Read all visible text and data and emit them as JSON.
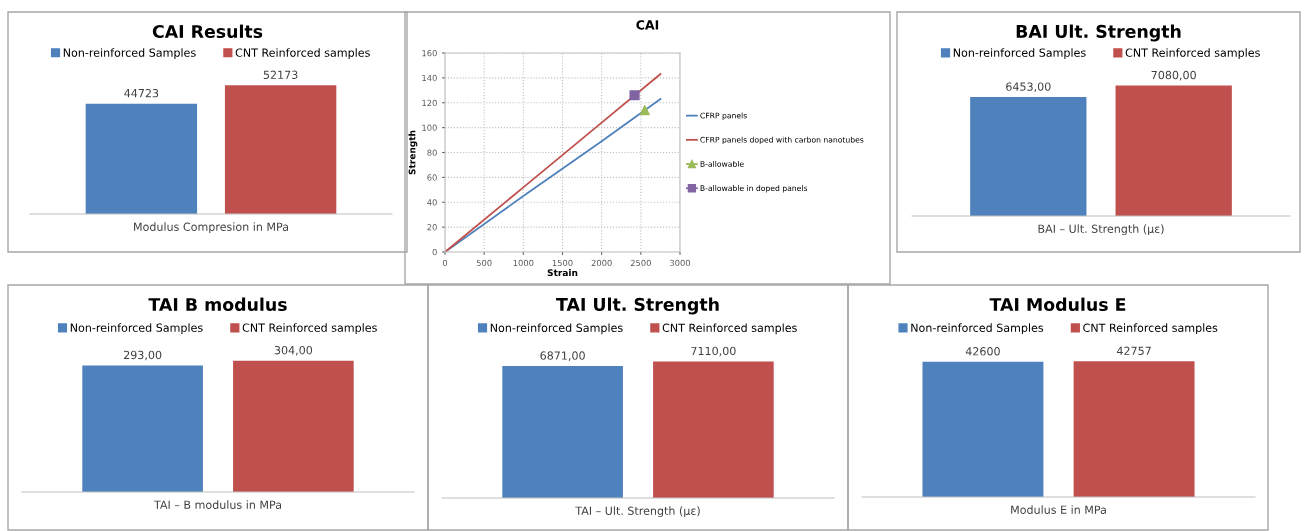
{
  "chart_data": [
    {
      "type": "bar",
      "title": "CAI Results",
      "xlabel": "Modulus Compresion in MPa",
      "categories": [
        null
      ],
      "legend": "top",
      "tick_labels": false,
      "series": [
        {
          "name": "Non-reinforced Samples",
          "color": "#4f81bd",
          "values": [
            44723
          ],
          "value_labels": [
            "44723"
          ]
        },
        {
          "name": "CNT Reinforced samples",
          "color": "#c0504d",
          "values": [
            52173
          ],
          "value_labels": [
            "52173"
          ]
        }
      ]
    },
    {
      "type": "line",
      "title": "CAI",
      "xlabel": "Strain",
      "ylabel": "Strength",
      "xlim": [
        0,
        3000
      ],
      "xticks": [
        0,
        500,
        1000,
        1500,
        2000,
        2500,
        3000
      ],
      "ylim": [
        0,
        160
      ],
      "yticks": [
        0,
        20,
        40,
        60,
        80,
        100,
        120,
        140,
        160
      ],
      "grid": true,
      "legend": "right",
      "series": [
        {
          "name": "CFRP panels",
          "color": "#4f81bd",
          "x": [
            0,
            1000,
            2000,
            2750
          ],
          "values": [
            0,
            45,
            89,
            123
          ],
          "marker": "none"
        },
        {
          "name": "CFRP panels doped with carbon nanotubes",
          "color": "#c0504d",
          "x": [
            0,
            1000,
            2000,
            2750
          ],
          "values": [
            0,
            52,
            104,
            143
          ],
          "marker": "none"
        },
        {
          "name": "B-allowable",
          "type": "scatter",
          "color": "#9bbb59",
          "x": [
            2550
          ],
          "values": [
            114
          ],
          "marker": "triangle"
        },
        {
          "name": "B-allowable in doped panels",
          "type": "scatter",
          "color": "#8064a2",
          "x": [
            2420
          ],
          "values": [
            126
          ],
          "marker": "square"
        }
      ]
    },
    {
      "type": "bar",
      "title": "BAI Ult. Strength",
      "xlabel": "BAI – Ult. Strength (με)",
      "categories": [
        null
      ],
      "legend": "top",
      "tick_labels": false,
      "series": [
        {
          "name": "Non-reinforced Samples",
          "color": "#4f81bd",
          "values": [
            6453
          ],
          "value_labels": [
            "6453,00"
          ]
        },
        {
          "name": "CNT Reinforced samples",
          "color": "#c0504d",
          "values": [
            7080
          ],
          "value_labels": [
            "7080,00"
          ]
        }
      ]
    },
    {
      "type": "bar",
      "title": "TAI B modulus",
      "xlabel": "TAI – B modulus in MPa",
      "categories": [
        null
      ],
      "legend": "top",
      "tick_labels": false,
      "series": [
        {
          "name": "Non-reinforced Samples",
          "color": "#4f81bd",
          "values": [
            293
          ],
          "value_labels": [
            "293,00"
          ]
        },
        {
          "name": "CNT Reinforced samples",
          "color": "#c0504d",
          "values": [
            304
          ],
          "value_labels": [
            "304,00"
          ]
        }
      ]
    },
    {
      "type": "bar",
      "title": "TAI Ult. Strength",
      "xlabel": "TAI – Ult. Strength (με)",
      "categories": [
        null
      ],
      "legend": "top",
      "tick_labels": false,
      "series": [
        {
          "name": "Non-reinforced Samples",
          "color": "#4f81bd",
          "values": [
            6871
          ],
          "value_labels": [
            "6871,00"
          ]
        },
        {
          "name": "CNT Reinforced samples",
          "color": "#c0504d",
          "values": [
            7110
          ],
          "value_labels": [
            "7110,00"
          ]
        }
      ]
    },
    {
      "type": "bar",
      "title": "TAI Modulus E",
      "xlabel": "Modulus E in MPa",
      "categories": [
        null
      ],
      "legend": "top",
      "tick_labels": false,
      "series": [
        {
          "name": "Non-reinforced Samples",
          "color": "#4f81bd",
          "values": [
            42600
          ],
          "value_labels": [
            "42600"
          ]
        },
        {
          "name": "CNT Reinforced samples",
          "color": "#c0504d",
          "values": [
            42757
          ],
          "value_labels": [
            "42757"
          ]
        }
      ]
    }
  ]
}
